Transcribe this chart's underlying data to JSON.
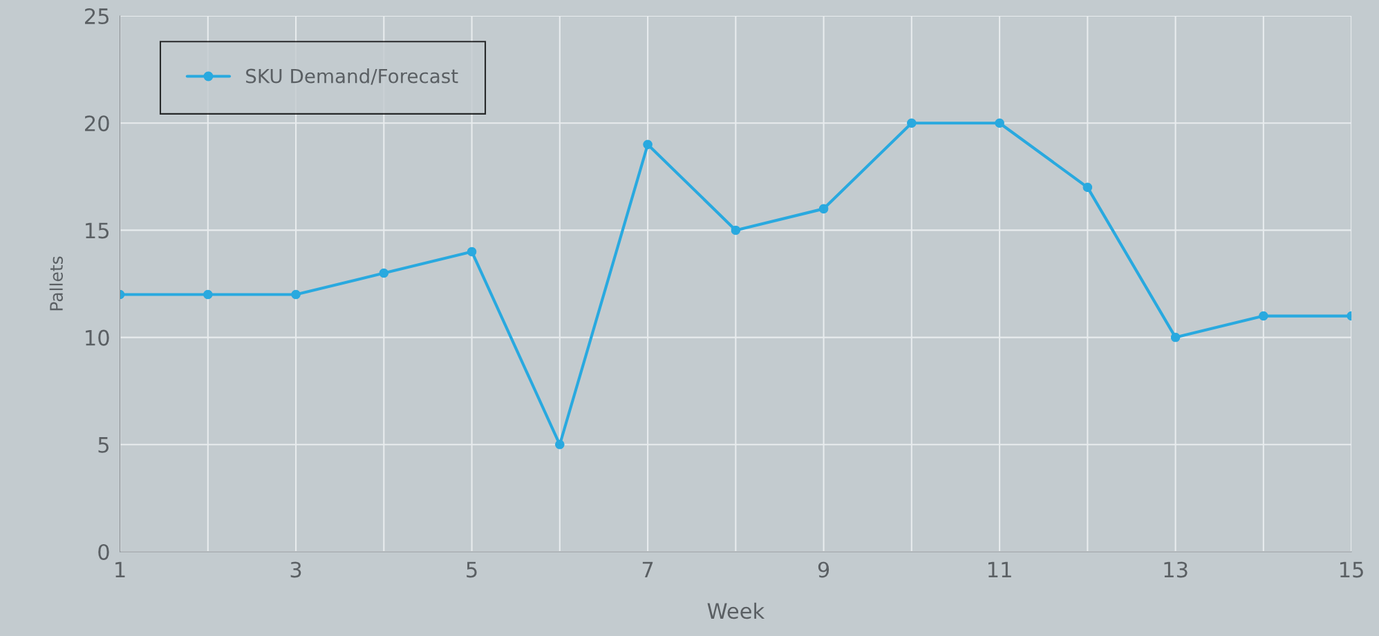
{
  "chart_data": {
    "type": "line",
    "xlabel": "Week",
    "ylabel": "Pallets",
    "x": [
      1,
      2,
      3,
      4,
      5,
      6,
      7,
      8,
      9,
      10,
      11,
      12,
      13,
      14,
      15
    ],
    "series": [
      {
        "name": "SKU Demand/Forecast",
        "color": "#29a9df",
        "values": [
          12,
          12,
          12,
          13,
          14,
          5,
          19,
          15,
          16,
          20,
          20,
          17,
          10,
          11,
          11
        ]
      }
    ],
    "xlim": [
      1,
      15
    ],
    "xticks": [
      1,
      {
        "value": 2,
        "label": null
      },
      3,
      {
        "value": 4,
        "label": null
      },
      5,
      {
        "value": 6,
        "label": null
      },
      7,
      {
        "value": 8,
        "label": null
      },
      9,
      {
        "value": 10,
        "label": null
      },
      11,
      {
        "value": 12,
        "label": null
      },
      13,
      {
        "value": 14,
        "label": null
      },
      15
    ],
    "ylim": [
      0,
      25
    ],
    "yticks": [
      0,
      5,
      10,
      15,
      20,
      25
    ],
    "grid": true,
    "legend": "top left",
    "marker": "circle",
    "line_style": "solid"
  }
}
